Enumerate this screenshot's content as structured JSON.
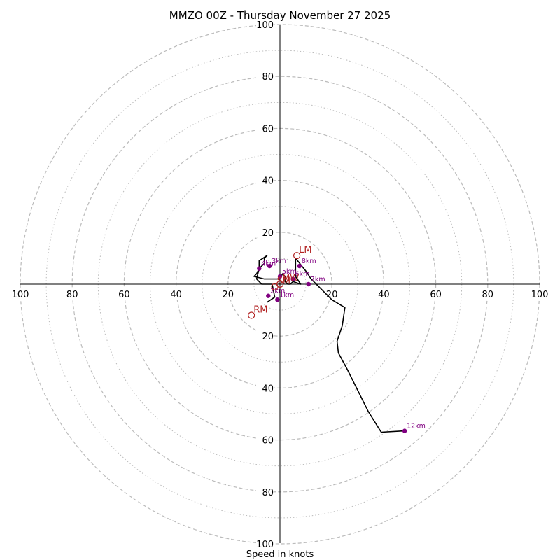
{
  "colors": {
    "trace": "#000000",
    "marker": "#800080",
    "motion": "#b22222",
    "grid": "#bbbbbb"
  },
  "chart_data": {
    "type": "hodograph",
    "title": "MMZO 00Z - Thursday November 27 2025",
    "xlabel": "Speed in knots",
    "ring_range": [
      0,
      100
    ],
    "major_rings": [
      20,
      40,
      60,
      80,
      100
    ],
    "minor_rings": [
      10,
      30,
      50,
      70,
      90
    ],
    "ticks": {
      "left": [
        "100",
        "80",
        "60",
        "40",
        "20"
      ],
      "right": [
        "20",
        "40",
        "60",
        "80",
        "100"
      ],
      "top": [
        "20",
        "40",
        "60",
        "80",
        "100"
      ],
      "bottom": [
        "20",
        "40",
        "60",
        "80",
        "100"
      ]
    },
    "trace": [
      {
        "u": -5,
        "v": -7
      },
      {
        "u": -2,
        "v": -5
      },
      {
        "u": -3,
        "v": 0
      },
      {
        "u": -7,
        "v": 0
      },
      {
        "u": -9,
        "v": 2
      },
      {
        "u": -8,
        "v": 6
      },
      {
        "u": -6,
        "v": 8
      },
      {
        "u": -6,
        "v": 10
      },
      {
        "u": -5,
        "v": 11
      },
      {
        "u": -8,
        "v": 9
      },
      {
        "u": -8,
        "v": 6
      },
      {
        "u": -9,
        "v": 4
      },
      {
        "u": -10,
        "v": 3
      },
      {
        "u": -6,
        "v": 2
      },
      {
        "u": -5,
        "v": 2
      },
      {
        "u": 0,
        "v": 2
      },
      {
        "u": 1,
        "v": 4
      },
      {
        "u": 2,
        "v": 3
      },
      {
        "u": 2,
        "v": 1
      },
      {
        "u": 3,
        "v": 0
      },
      {
        "u": 4,
        "v": 0
      },
      {
        "u": 5,
        "v": 1
      },
      {
        "u": 8,
        "v": 0
      },
      {
        "u": 6,
        "v": 3
      },
      {
        "u": 6,
        "v": 10
      },
      {
        "u": 10,
        "v": 5
      },
      {
        "u": 12,
        "v": 2
      },
      {
        "u": 15,
        "v": -1
      },
      {
        "u": 20,
        "v": -6
      },
      {
        "u": 25,
        "v": -9
      },
      {
        "u": 24,
        "v": -16
      },
      {
        "u": 22,
        "v": -22
      },
      {
        "u": 22.5,
        "v": -26.5
      },
      {
        "u": 26,
        "v": -33
      },
      {
        "u": 34,
        "v": -49
      },
      {
        "u": 39,
        "v": -57
      },
      {
        "u": 48,
        "v": -56.5
      }
    ],
    "height_markers": [
      {
        "label": "1km",
        "u": -1,
        "v": -6
      },
      {
        "label": "2km",
        "u": -4.5,
        "v": -4.5
      },
      {
        "label": "3km",
        "u": -4,
        "v": 7
      },
      {
        "label": "4km",
        "u": -8,
        "v": 6
      },
      {
        "label": "5km",
        "u": 0,
        "v": 3
      },
      {
        "label": "6km",
        "u": 5,
        "v": 2
      },
      {
        "label": "7km",
        "u": 11,
        "v": 0
      },
      {
        "label": "8km",
        "u": 7.5,
        "v": 7
      },
      {
        "label": "12km",
        "u": 48,
        "v": -56.5
      }
    ],
    "storm_motion": [
      {
        "label": "LM",
        "u": 6.5,
        "v": 11
      },
      {
        "label": "RM",
        "u": -11,
        "v": -12
      },
      {
        "label": "MW",
        "u": 0,
        "v": 0
      },
      {
        "label": "SM",
        "u": -2,
        "v": -1
      }
    ]
  }
}
